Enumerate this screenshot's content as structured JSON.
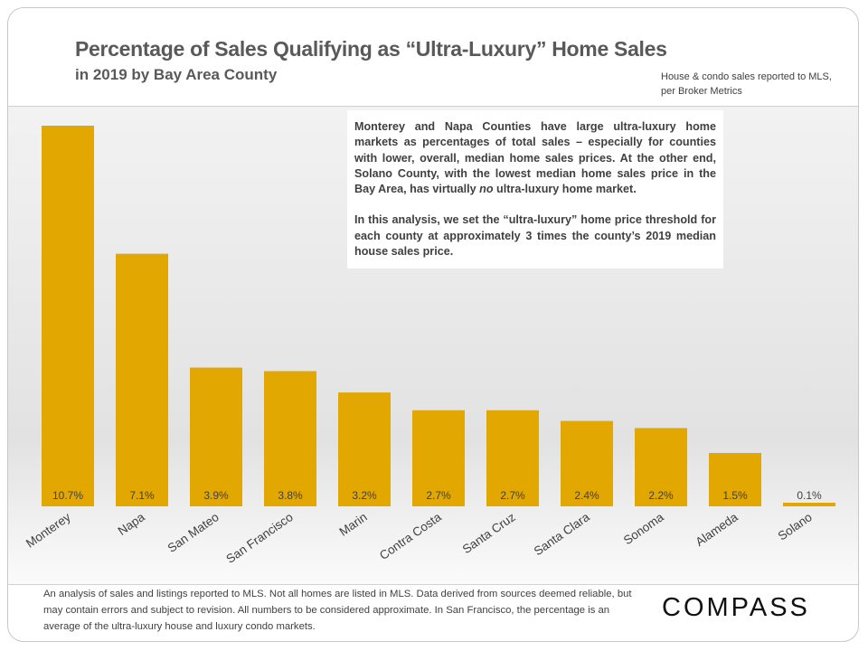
{
  "header": {
    "title": "Percentage of Sales Qualifying as “Ultra-Luxury” Home Sales",
    "subtitle": "in 2019 by Bay Area County",
    "source": "House & condo sales reported to MLS, per Broker Metrics"
  },
  "note": {
    "p1_before": "Monterey and Napa Counties have large ultra-luxury home markets as percentages of total sales – especially for counties with lower, overall, median home sales prices. At the other end, Solano County, with the lowest median home sales price in the Bay Area, has virtually ",
    "p1_em": "no",
    "p1_after": " ultra-luxury home market.",
    "p2": "In this analysis, we set the “ultra-luxury” home price threshold for each county at approximately 3 times the county’s 2019 median house sales price."
  },
  "footer": {
    "disclaimer": "An analysis of sales and listings reported to MLS. Not all homes are listed in MLS. Data derived from sources deemed reliable, but may contain errors and subject to revision. All numbers to be considered approximate. In San Francisco, the percentage is an average of the ultra-luxury house and luxury condo markets.",
    "logo": "COMPASS"
  },
  "chart_data": {
    "type": "bar",
    "title": "Percentage of Sales Qualifying as “Ultra-Luxury” Home Sales",
    "categories": [
      "Monterey",
      "Napa",
      "San Mateo",
      "San Francisco",
      "Marin",
      "Contra Costa",
      "Santa Cruz",
      "Santa Clara",
      "Sonoma",
      "Alameda",
      "Solano"
    ],
    "values": [
      10.7,
      7.1,
      3.9,
      3.8,
      3.2,
      2.7,
      2.7,
      2.4,
      2.2,
      1.5,
      0.1
    ],
    "data_labels": [
      "10.7%",
      "7.1%",
      "3.9%",
      "3.8%",
      "3.2%",
      "2.7%",
      "2.7%",
      "2.4%",
      "2.2%",
      "1.5%",
      "0.1%"
    ],
    "ylim": [
      0,
      11
    ],
    "grid": false,
    "bar_color": "#E2A700"
  }
}
